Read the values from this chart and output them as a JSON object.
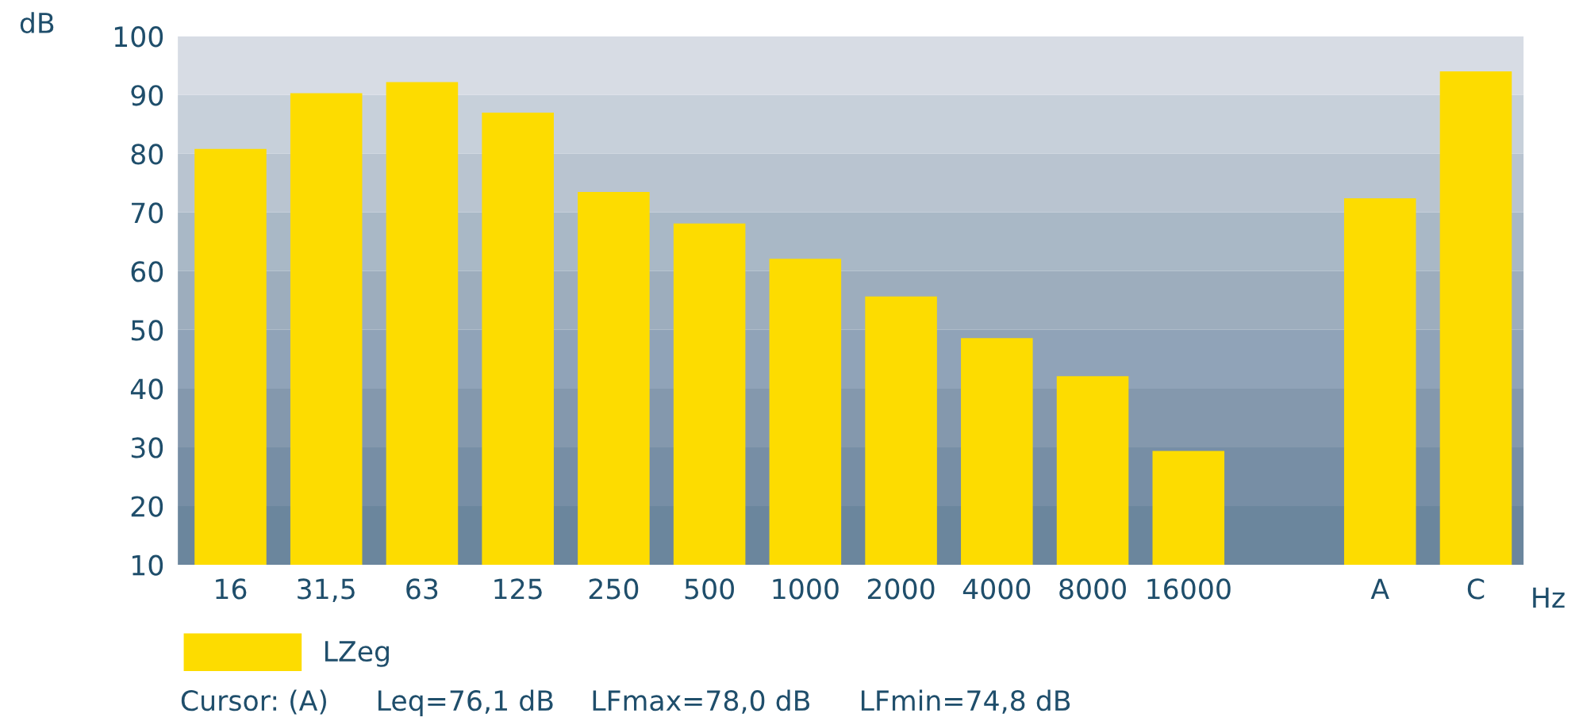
{
  "chart_data": {
    "type": "bar",
    "categories": [
      "16",
      "31,5",
      "63",
      "125",
      "250",
      "500",
      "1000",
      "2000",
      "4000",
      "8000",
      "16000",
      null,
      "A",
      "C"
    ],
    "series": [
      {
        "name": "LZeg",
        "color": "#fddc00",
        "values": [
          80.8,
          90.3,
          92.2,
          87.0,
          73.5,
          68.1,
          62.1,
          55.7,
          48.6,
          42.1,
          29.4,
          null,
          72.4,
          94.0
        ]
      }
    ],
    "ylabel": "dB",
    "xlabel": "Hz",
    "ylim": [
      10,
      100
    ],
    "yticks": [
      10,
      20,
      30,
      40,
      50,
      60,
      70,
      80,
      90,
      100
    ],
    "bands": [
      {
        "axis": "y",
        "from": 10,
        "to": 20,
        "color": "#6b869d"
      },
      {
        "axis": "y",
        "from": 20,
        "to": 30,
        "color": "#778ea5"
      },
      {
        "axis": "y",
        "from": 30,
        "to": 40,
        "color": "#8498ad"
      },
      {
        "axis": "y",
        "from": 40,
        "to": 50,
        "color": "#90a3b8"
      },
      {
        "axis": "y",
        "from": 50,
        "to": 60,
        "color": "#9dadbd"
      },
      {
        "axis": "y",
        "from": 60,
        "to": 70,
        "color": "#a9b8c6"
      },
      {
        "axis": "y",
        "from": 70,
        "to": 80,
        "color": "#b9c4d0"
      },
      {
        "axis": "y",
        "from": 80,
        "to": 90,
        "color": "#c7d0da"
      },
      {
        "axis": "y",
        "from": 90,
        "to": 100,
        "color": "#d7dce4"
      }
    ],
    "annotations": [
      "Cursor: (A)",
      "Leq=76,1 dB",
      "LFmax=78,0 dB",
      "LFmin=74,8 dB"
    ],
    "legend": "bottom left",
    "grid": false
  }
}
